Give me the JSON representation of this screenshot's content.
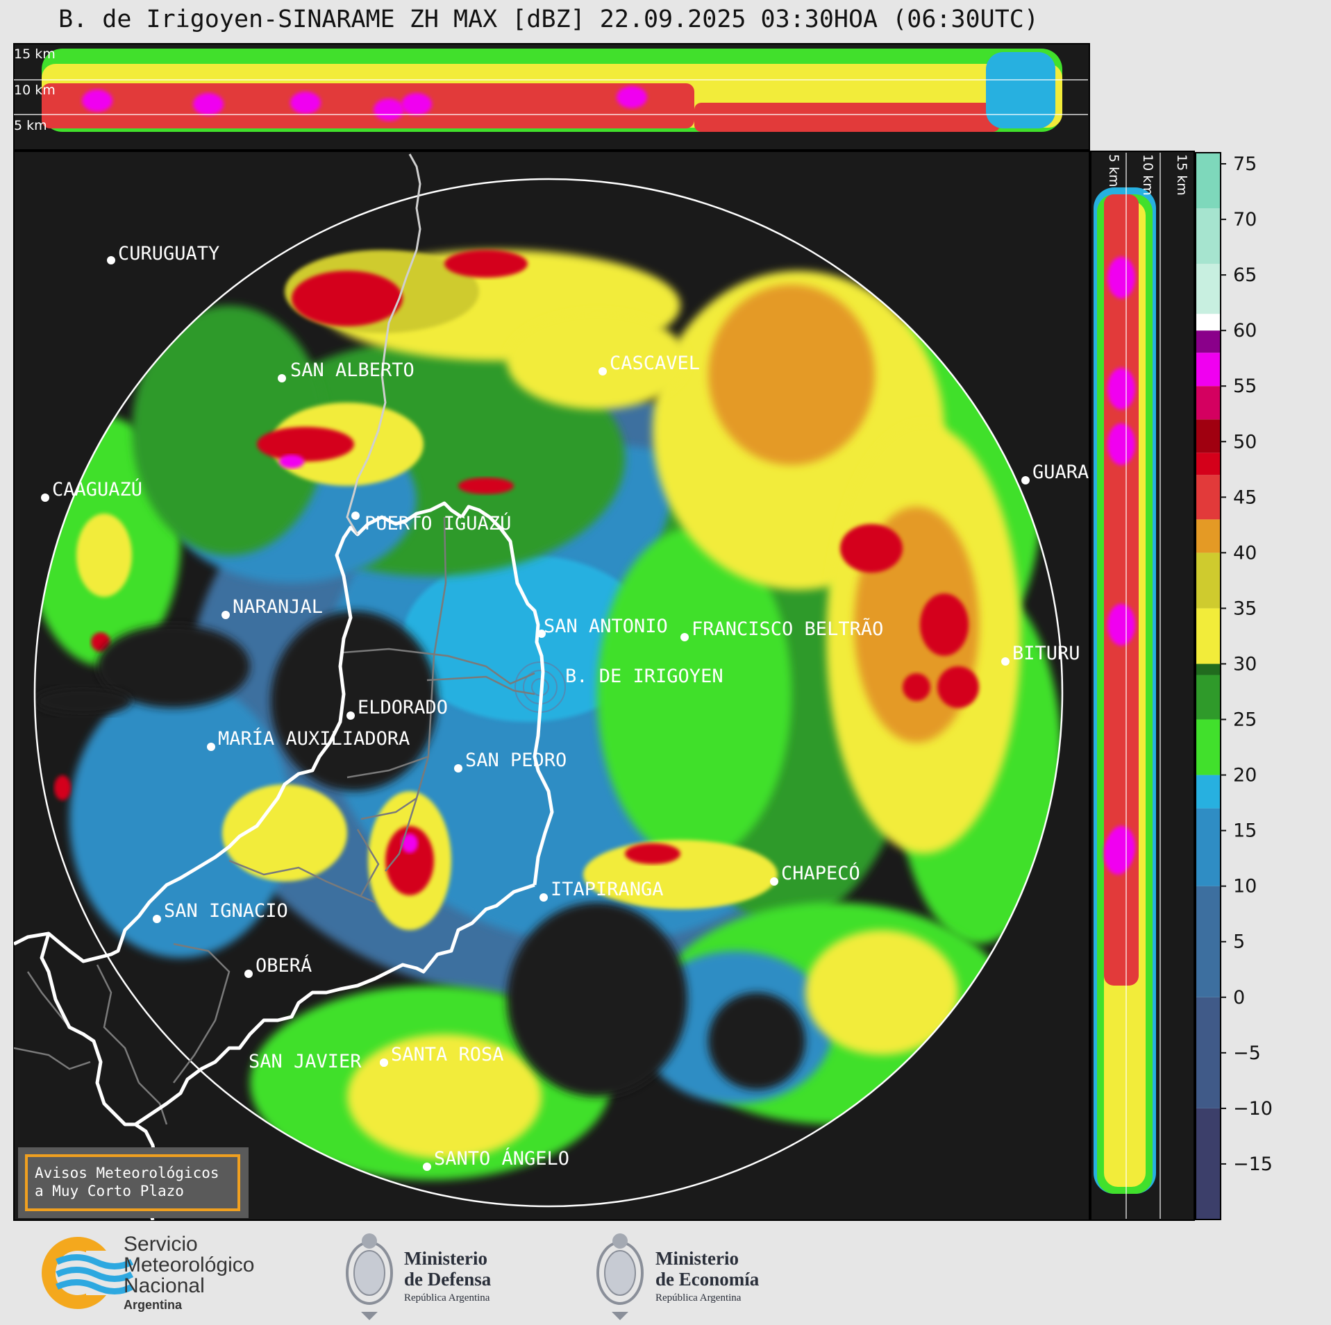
{
  "title": "B. de Irigoyen-SINARAME ZH MAX [dBZ] 22.09.2025 03:30HOA (06:30UTC)",
  "top_profile": {
    "height_labels": [
      "15 km",
      "10 km",
      "5 km"
    ]
  },
  "side_profile": {
    "height_labels": [
      "5 km",
      "10 km",
      "15 km"
    ]
  },
  "colorbar": {
    "unit": "dBZ",
    "ticks": [
      "75",
      "70",
      "65",
      "60",
      "55",
      "50",
      "45",
      "40",
      "35",
      "30",
      "25",
      "20",
      "15",
      "10",
      "5",
      "0",
      "−5",
      "−10",
      "−15"
    ],
    "colors": {
      "c_-20": "#3c3f6a",
      "c_-10": "#405a88",
      "c_0": "#3d6f9f",
      "c_10": "#2f8dc4",
      "c_17": "#27b0e0",
      "c_20": "#41e02c",
      "c_25": "#2f9a2a",
      "c_29": "#216b1e",
      "c_30": "#f2ec3a",
      "c_35": "#cfcb2e",
      "c_40": "#e49a25",
      "c_43": "#e23a3a",
      "c_47": "#d4001a",
      "c_49": "#a00010",
      "c_52": "#d40060",
      "c_55": "#f000f0",
      "c_58": "#8a008a",
      "c_60": "#ffffff",
      "c_65": "#c8efe0",
      "c_70": "#a6e4cf",
      "c_76": "#7ed8bb"
    }
  },
  "map": {
    "background": "#1a1a1a",
    "places": [
      {
        "name": "CURUGUATY",
        "kind": "city"
      },
      {
        "name": "SAN ALBERTO",
        "kind": "city"
      },
      {
        "name": "CASCAVEL",
        "kind": "city"
      },
      {
        "name": "CAAGUAZÚ",
        "kind": "city"
      },
      {
        "name": "GUARA",
        "kind": "city"
      },
      {
        "name": "PUERTO IGUAZÚ",
        "kind": "city"
      },
      {
        "name": "NARANJAL",
        "kind": "city"
      },
      {
        "name": "SAN ANTONIO",
        "kind": "city"
      },
      {
        "name": "FRANCISCO BELTRÃO",
        "kind": "city"
      },
      {
        "name": "BITURU",
        "kind": "city"
      },
      {
        "name": "B. DE IRIGOYEN",
        "kind": "radar"
      },
      {
        "name": "ELDORADO",
        "kind": "city"
      },
      {
        "name": "MARÍA AUXILIADORA",
        "kind": "city"
      },
      {
        "name": "SAN PEDRO",
        "kind": "city"
      },
      {
        "name": "CHAPECÓ",
        "kind": "city"
      },
      {
        "name": "ITAPIRANGA",
        "kind": "city"
      },
      {
        "name": "SAN IGNACIO",
        "kind": "city"
      },
      {
        "name": "OBERÁ",
        "kind": "city"
      },
      {
        "name": "SAN JAVIER",
        "kind": "city"
      },
      {
        "name": "SANTA ROSA",
        "kind": "city"
      },
      {
        "name": "SANTO ÁNGELO",
        "kind": "city"
      }
    ],
    "notice": {
      "line1": "Avisos Meteorológicos",
      "line2": "a Muy Corto Plazo",
      "border_color": "#f0a020"
    }
  },
  "footer": {
    "smn": {
      "line1": "Servicio",
      "line2": "Meteorológico",
      "line3": "Nacional",
      "line4": "Argentina",
      "ring_color": "#f4a81d",
      "wave_color": "#2da8e0"
    },
    "defensa": {
      "line1": "Ministerio",
      "line2": "de Defensa",
      "line3": "República Argentina"
    },
    "economia": {
      "line1": "Ministerio",
      "line2": "de Economía",
      "line3": "República Argentina"
    }
  }
}
